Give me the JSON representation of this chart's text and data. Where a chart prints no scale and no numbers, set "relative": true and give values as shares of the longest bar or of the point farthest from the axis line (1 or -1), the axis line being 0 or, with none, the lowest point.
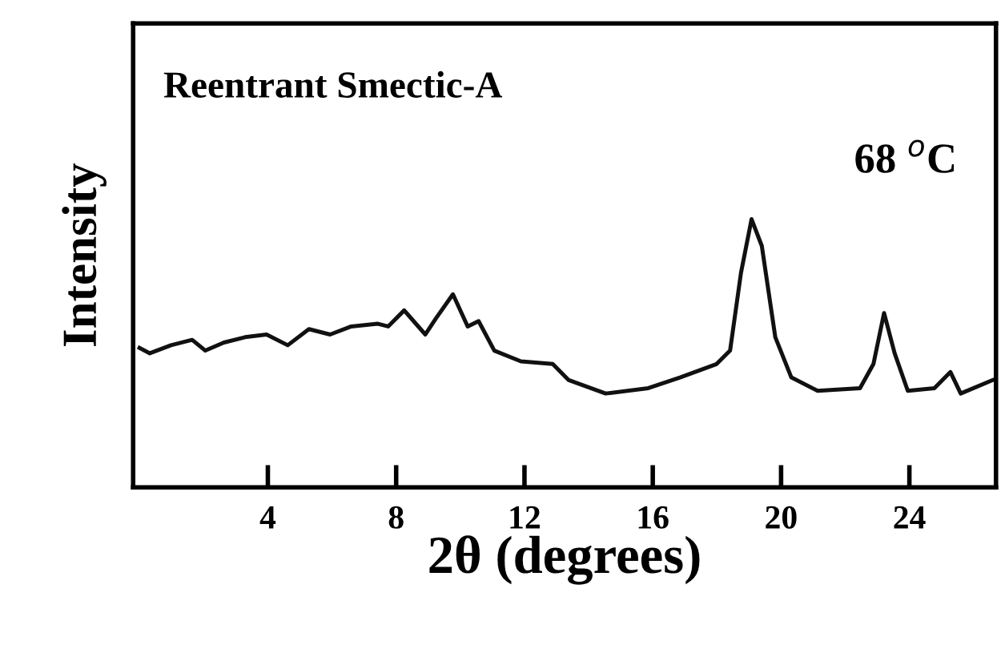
{
  "chart_data": {
    "type": "line",
    "relative": true,
    "xlabel": "2θ (degrees)",
    "ylabel": "Intensity",
    "annotations": [
      "Reentrant Smectic-A",
      "68 $^{o}$C"
    ],
    "xlim": [
      -0.2,
      26.7
    ],
    "xticks": [
      4,
      8,
      12,
      16,
      20,
      24
    ],
    "grid": false,
    "legend": false,
    "marker": "none",
    "line_style": "solid",
    "series": [
      {
        "color": "#111111",
        "x": [
          0,
          0.32,
          0.98,
          1.64,
          2.05,
          2.63,
          3.29,
          3.96,
          4.62,
          5.28,
          5.94,
          6.6,
          7.43,
          7.75,
          8.25,
          8.91,
          9.24,
          9.77,
          10.23,
          10.57,
          11.06,
          11.89,
          12.88,
          13.38,
          14.53,
          15.86,
          16.85,
          17.99,
          18.41,
          18.75,
          19.08,
          19.4,
          19.82,
          20.32,
          21.14,
          22.46,
          22.88,
          23.21,
          23.54,
          23.95,
          24.78,
          25.28,
          25.6,
          26.59
        ],
        "values": [
          0.52,
          0.5,
          0.53,
          0.55,
          0.51,
          0.54,
          0.56,
          0.57,
          0.53,
          0.59,
          0.57,
          0.6,
          0.61,
          0.6,
          0.66,
          0.57,
          0.63,
          0.72,
          0.6,
          0.62,
          0.51,
          0.47,
          0.46,
          0.4,
          0.35,
          0.37,
          0.41,
          0.46,
          0.51,
          0.8,
          1.0,
          0.9,
          0.56,
          0.41,
          0.36,
          0.37,
          0.46,
          0.65,
          0.5,
          0.36,
          0.37,
          0.43,
          0.35,
          0.4
        ]
      }
    ]
  }
}
